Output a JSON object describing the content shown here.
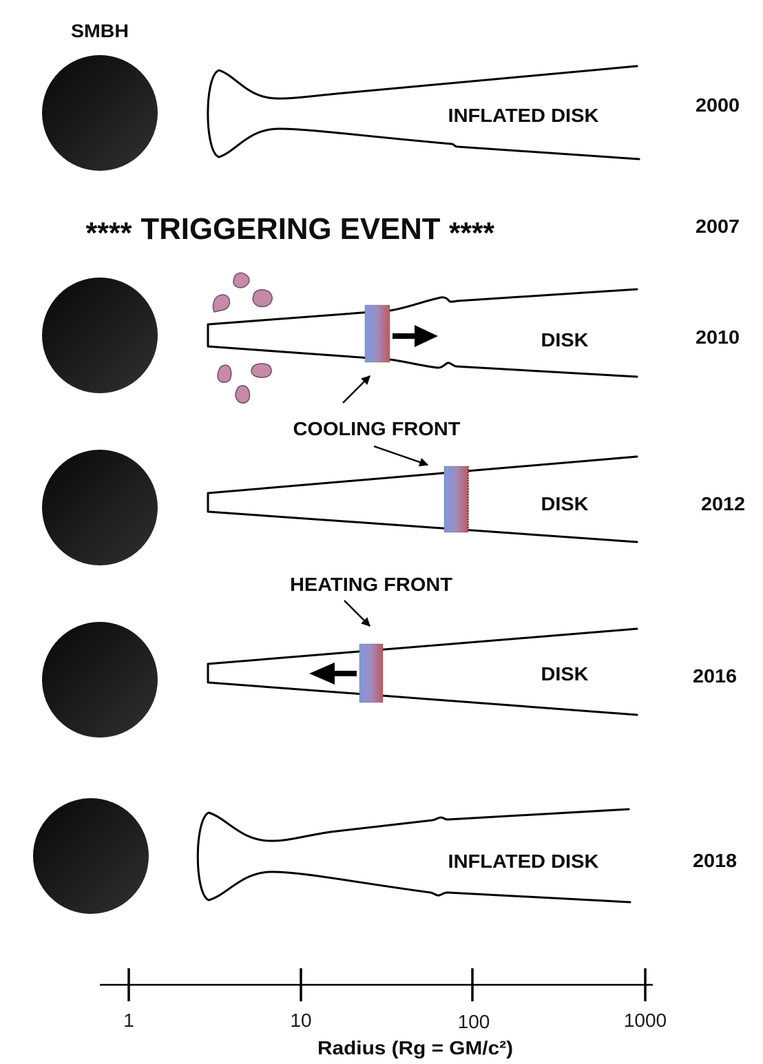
{
  "labels": {
    "smbh": "SMBH"
  },
  "stages": [
    {
      "year": "2000",
      "disk_label": "INFLATED DISK"
    },
    {
      "year": "2010",
      "disk_label": "DISK"
    },
    {
      "year": "2012",
      "disk_label": "DISK"
    },
    {
      "year": "2016",
      "disk_label": "DISK"
    },
    {
      "year": "2018",
      "disk_label": "INFLATED DISK"
    }
  ],
  "trigger": {
    "stars_left": "****",
    "title": "TRIGGERING EVENT",
    "stars_right": "****",
    "year": "2007"
  },
  "annotations": {
    "cooling_front": "COOLING FRONT",
    "heating_front": "HEATING FRONT"
  },
  "axis": {
    "ticks": [
      "1",
      "10",
      "100",
      "1000"
    ],
    "label": "Radius (Rg = GM/c²)"
  },
  "colors": {
    "black_hole_dark": "#080808",
    "black_hole_light": "#303030",
    "front_cool": "#7b99e2",
    "front_mid": "#a08cbc",
    "front_hot": "#c4575a",
    "clump_fill": "#c58aa8",
    "clump_stroke": "#6e4b6c"
  }
}
